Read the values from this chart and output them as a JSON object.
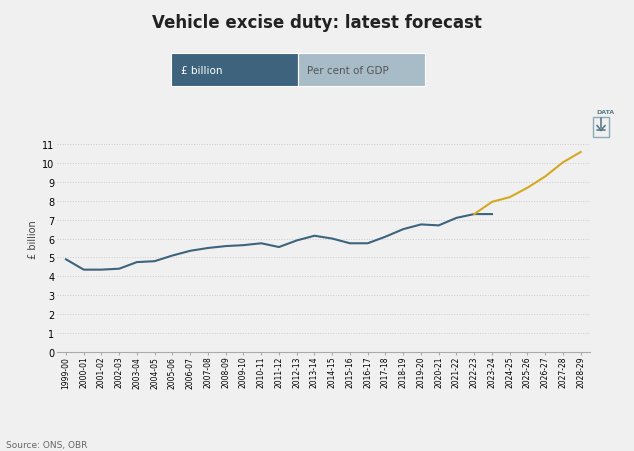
{
  "title": "Vehicle excise duty: latest forecast",
  "ylabel": "£ billion",
  "source": "Source: ONS, OBR",
  "legend_labels": [
    "£ billion",
    "Per cent of GDP"
  ],
  "legend_colors": [
    "#3d637d",
    "#a8bcc8"
  ],
  "background_color": "#f0f0f0",
  "xlabels": [
    "1999-00",
    "2000-01",
    "2001-02",
    "2002-03",
    "2003-04",
    "2004-05",
    "2005-06",
    "2006-07",
    "2007-08",
    "2008-09",
    "2009-10",
    "2010-11",
    "2011-12",
    "2012-13",
    "2013-14",
    "2014-15",
    "2015-16",
    "2016-17",
    "2017-18",
    "2018-19",
    "2019-20",
    "2020-21",
    "2021-22",
    "2022-23",
    "2023-24",
    "2024-25",
    "2025-26",
    "2026-27",
    "2027-28",
    "2028-29"
  ],
  "blue_values": [
    4.9,
    4.35,
    4.35,
    4.4,
    4.75,
    4.8,
    5.1,
    5.35,
    5.5,
    5.6,
    5.65,
    5.75,
    5.55,
    5.9,
    6.15,
    6.0,
    5.75,
    5.75,
    6.1,
    6.5,
    6.75,
    6.7,
    7.1,
    7.3,
    7.3
  ],
  "yellow_values_x": [
    23,
    24,
    25,
    26,
    27,
    28,
    29
  ],
  "yellow_values_y": [
    7.3,
    7.95,
    8.2,
    8.7,
    9.3,
    10.05,
    10.6
  ],
  "blue_color": "#3d637d",
  "yellow_color": "#d4a820",
  "ylim": [
    0,
    12
  ],
  "yticks": [
    0,
    1,
    2,
    3,
    4,
    5,
    6,
    7,
    8,
    9,
    10,
    11
  ],
  "grid_color": "#cccccc",
  "title_fontsize": 12,
  "axis_fontsize": 7,
  "ylabel_fontsize": 7
}
